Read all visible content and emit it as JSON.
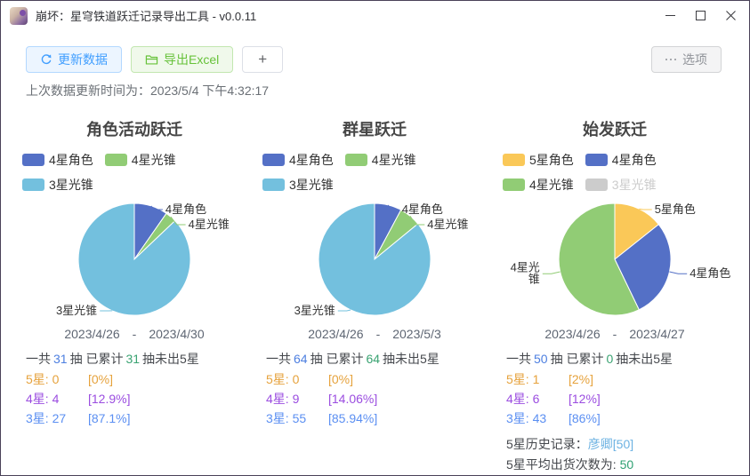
{
  "window": {
    "title": "崩坏：星穹铁道跃迁记录导出工具 - v0.0.11"
  },
  "icons": {
    "app": "app-avatar-icon",
    "refresh": "refresh-icon",
    "export": "folder-icon",
    "options": "ellipsis-icon",
    "minimize": "minimize-icon",
    "maximize": "maximize-icon",
    "close": "close-icon"
  },
  "toolbar": {
    "refresh": "更新数据",
    "export": "导出Excel",
    "add": "+",
    "options": "选项"
  },
  "status": {
    "label": "上次数据更新时间为：",
    "value": "2023/5/4 下午4:32:17"
  },
  "palette": {
    "star4_char": "#5470c6",
    "star4_cone": "#91cc75",
    "star3_cone": "#73c0de",
    "star5_char": "#fac858",
    "disabled": "#cccccc"
  },
  "charts": [
    {
      "title": "角色活动跃迁",
      "legend": [
        {
          "label": "4星角色",
          "color": "#5470c6",
          "label_color": "#333333"
        },
        {
          "label": "4星光锥",
          "color": "#91cc75",
          "label_color": "#333333"
        },
        {
          "label": "3星光锥",
          "color": "#73c0de",
          "label_color": "#333333"
        }
      ],
      "pie": {
        "slices": [
          {
            "label": "4星角色",
            "value": 3,
            "color": "#5470c6"
          },
          {
            "label": "4星光锥",
            "value": 1,
            "color": "#91cc75"
          },
          {
            "label": "3星光锥",
            "value": 27,
            "color": "#73c0de"
          }
        ]
      },
      "date_start": "2023/4/26",
      "date_sep": "-",
      "date_end": "2023/4/30",
      "stats": {
        "t1": "一共",
        "total": "31",
        "t2": "抽 已累计",
        "pity": "31",
        "t3": "抽未出5星",
        "total_color": "#4d7fe0",
        "pity_color": "#3aa372",
        "rows": [
          {
            "name": "5星:",
            "count": "0",
            "pct": "[0%]",
            "color": "#e6a23c"
          },
          {
            "name": "4星:",
            "count": "4",
            "pct": "[12.9%]",
            "color": "#9b4de0"
          },
          {
            "name": "3星:",
            "count": "27",
            "pct": "[87.1%]",
            "color": "#5b8ff2"
          }
        ]
      }
    },
    {
      "title": "群星跃迁",
      "legend": [
        {
          "label": "4星角色",
          "color": "#5470c6",
          "label_color": "#333333"
        },
        {
          "label": "4星光锥",
          "color": "#91cc75",
          "label_color": "#333333"
        },
        {
          "label": "3星光锥",
          "color": "#73c0de",
          "label_color": "#333333"
        }
      ],
      "pie": {
        "slices": [
          {
            "label": "4星角色",
            "value": 5,
            "color": "#5470c6"
          },
          {
            "label": "4星光锥",
            "value": 4,
            "color": "#91cc75"
          },
          {
            "label": "3星光锥",
            "value": 55,
            "color": "#73c0de"
          }
        ]
      },
      "date_start": "2023/4/26",
      "date_sep": "-",
      "date_end": "2023/5/3",
      "stats": {
        "t1": "一共",
        "total": "64",
        "t2": "抽 已累计",
        "pity": "64",
        "t3": "抽未出5星",
        "total_color": "#4d7fe0",
        "pity_color": "#3aa372",
        "rows": [
          {
            "name": "5星:",
            "count": "0",
            "pct": "[0%]",
            "color": "#e6a23c"
          },
          {
            "name": "4星:",
            "count": "9",
            "pct": "[14.06%]",
            "color": "#9b4de0"
          },
          {
            "name": "3星:",
            "count": "55",
            "pct": "[85.94%]",
            "color": "#5b8ff2"
          }
        ]
      }
    },
    {
      "title": "始发跃迁",
      "legend": [
        {
          "label": "5星角色",
          "color": "#fac858",
          "label_color": "#333333"
        },
        {
          "label": "4星角色",
          "color": "#5470c6",
          "label_color": "#333333"
        },
        {
          "label": "4星光锥",
          "color": "#91cc75",
          "label_color": "#333333"
        },
        {
          "label": "3星光锥",
          "color": "#cccccc",
          "label_color": "#cccccc"
        }
      ],
      "pie": {
        "slices": [
          {
            "label": "5星角色",
            "value": 1,
            "color": "#fac858"
          },
          {
            "label": "4星角色",
            "value": 2,
            "color": "#5470c6"
          },
          {
            "label": "4星光\n锥",
            "value": 4,
            "color": "#91cc75"
          }
        ]
      },
      "date_start": "2023/4/26",
      "date_sep": "-",
      "date_end": "2023/4/27",
      "stats": {
        "t1": "一共",
        "total": "50",
        "t2": "抽 已累计",
        "pity": "0",
        "t3": "抽未出5星",
        "total_color": "#4d7fe0",
        "pity_color": "#3aa372",
        "rows": [
          {
            "name": "5星:",
            "count": "1",
            "pct": "[2%]",
            "color": "#e6a23c"
          },
          {
            "name": "4星:",
            "count": "6",
            "pct": "[12%]",
            "color": "#9b4de0"
          },
          {
            "name": "3星:",
            "count": "43",
            "pct": "[86%]",
            "color": "#5b8ff2"
          }
        ]
      },
      "extra": {
        "history_label": "5星历史记录：",
        "history_value": "彦卿[50]",
        "history_color": "#6cb2e2",
        "avg_label": "5星平均出货次数为:",
        "avg_value": "50",
        "avg_color": "#2fa173"
      }
    }
  ],
  "chart_data": [
    {
      "type": "pie",
      "title": "角色活动跃迁",
      "labels": [
        "4星角色",
        "4星光锥",
        "3星光锥"
      ],
      "values": [
        3,
        1,
        27
      ],
      "colors": [
        "#5470c6",
        "#91cc75",
        "#73c0de"
      ],
      "total_pulls": 31,
      "pulls_since_last_5star": 31,
      "star_counts": {
        "5星": 0,
        "4星": 4,
        "3星": 27
      },
      "star_percents": {
        "5星": "0%",
        "4星": "12.9%",
        "3星": "87.1%"
      },
      "date_range": "2023/4/26 - 2023/4/30",
      "legend_position": "top"
    },
    {
      "type": "pie",
      "title": "群星跃迁",
      "labels": [
        "4星角色",
        "4星光锥",
        "3星光锥"
      ],
      "values": [
        5,
        4,
        55
      ],
      "colors": [
        "#5470c6",
        "#91cc75",
        "#73c0de"
      ],
      "total_pulls": 64,
      "pulls_since_last_5star": 64,
      "star_counts": {
        "5星": 0,
        "4星": 9,
        "3星": 55
      },
      "star_percents": {
        "5星": "0%",
        "4星": "14.06%",
        "3星": "85.94%"
      },
      "date_range": "2023/4/26 - 2023/5/3",
      "legend_position": "top"
    },
    {
      "type": "pie",
      "title": "始发跃迁",
      "labels": [
        "5星角色",
        "4星角色",
        "4星光锥"
      ],
      "values": [
        1,
        2,
        4
      ],
      "colors": [
        "#fac858",
        "#5470c6",
        "#91cc75"
      ],
      "disabled_legend": [
        "3星光锥"
      ],
      "total_pulls": 50,
      "pulls_since_last_5star": 0,
      "star_counts": {
        "5星": 1,
        "4星": 6,
        "3星": 43
      },
      "star_percents": {
        "5星": "2%",
        "4星": "12%",
        "3星": "86%"
      },
      "history_5star": "彦卿[50]",
      "avg_5star_pity": 50,
      "date_range": "2023/4/26 - 2023/4/27",
      "legend_position": "top"
    }
  ]
}
